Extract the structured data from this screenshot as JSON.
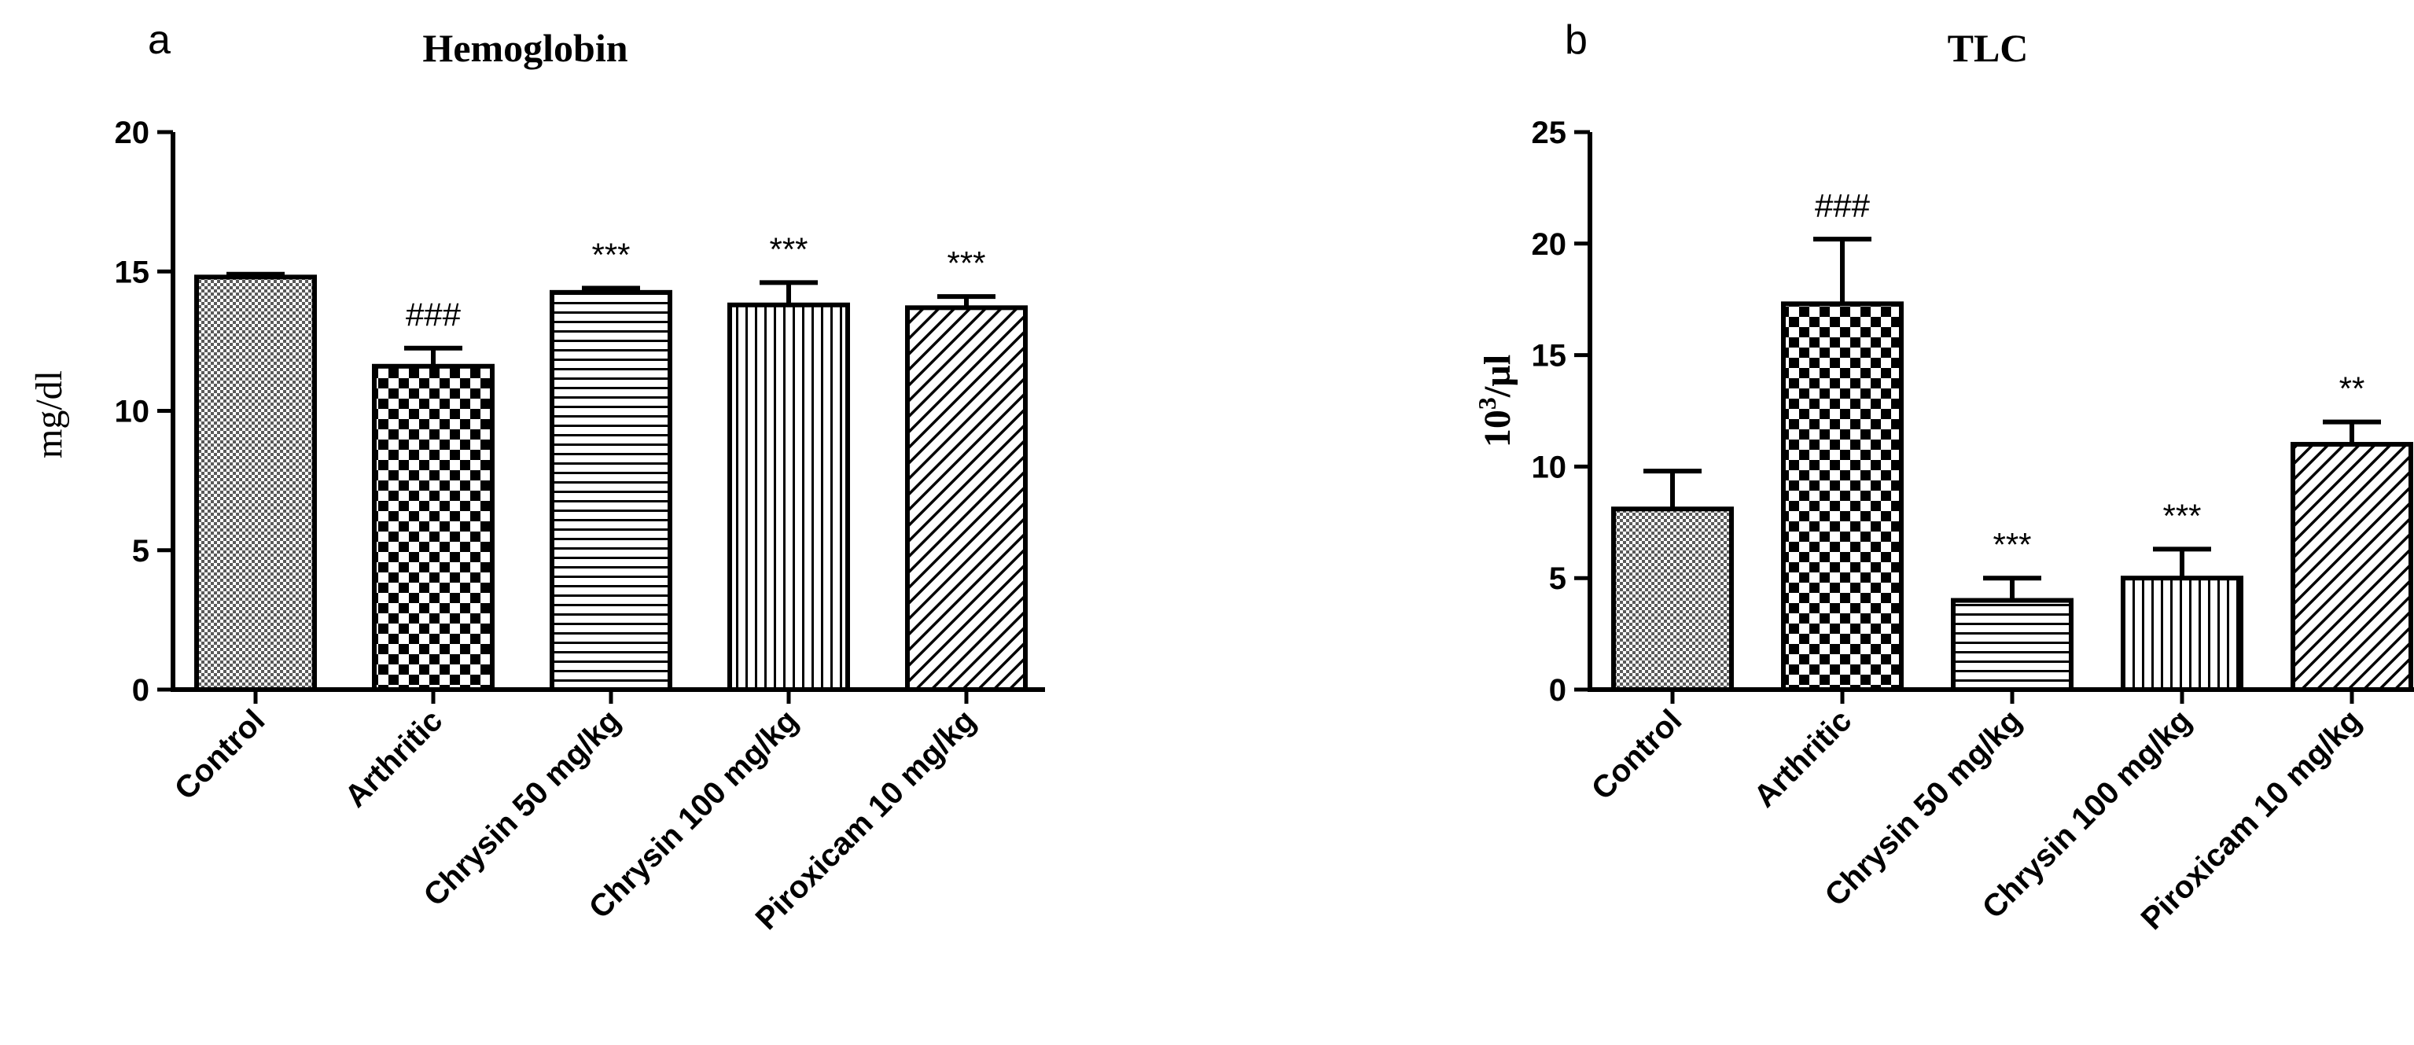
{
  "chart_data": [
    {
      "panel": "a",
      "type": "bar",
      "title": "Hemoglobin",
      "ylabel": "mg/dl",
      "ylim": [
        0,
        20
      ],
      "yticks": [
        0,
        5,
        10,
        15,
        20
      ],
      "categories": [
        "Control",
        "Arthritic",
        "Chrysin 50 mg/kg",
        "Chrysin 100 mg/kg",
        "Piroxicam 10 mg/kg"
      ],
      "values": [
        14.8,
        11.6,
        14.25,
        13.8,
        13.7
      ],
      "errors": [
        0.1,
        0.65,
        0.15,
        0.8,
        0.4
      ],
      "annotations": [
        "",
        "###",
        "***",
        "***",
        "***"
      ],
      "patterns": [
        "fine-check",
        "checker",
        "horizontal",
        "vertical",
        "diagonal"
      ]
    },
    {
      "panel": "b",
      "type": "bar",
      "title": "TLC",
      "ylabel_base": "10",
      "ylabel_sup": "3",
      "ylabel_tail": "/µl",
      "ylim": [
        0,
        25
      ],
      "yticks": [
        0,
        5,
        10,
        15,
        20,
        25
      ],
      "categories": [
        "Control",
        "Arthritic",
        "Chrysin 50 mg/kg",
        "Chrysin 100 mg/kg",
        "Piroxicam 10 mg/kg"
      ],
      "values": [
        8.1,
        17.3,
        4.0,
        5.0,
        11.0
      ],
      "errors": [
        1.7,
        2.9,
        1.0,
        1.3,
        1.0
      ],
      "annotations": [
        "",
        "###",
        "***",
        "***",
        "**"
      ],
      "patterns": [
        "fine-check",
        "checker",
        "horizontal",
        "vertical",
        "diagonal"
      ]
    }
  ]
}
